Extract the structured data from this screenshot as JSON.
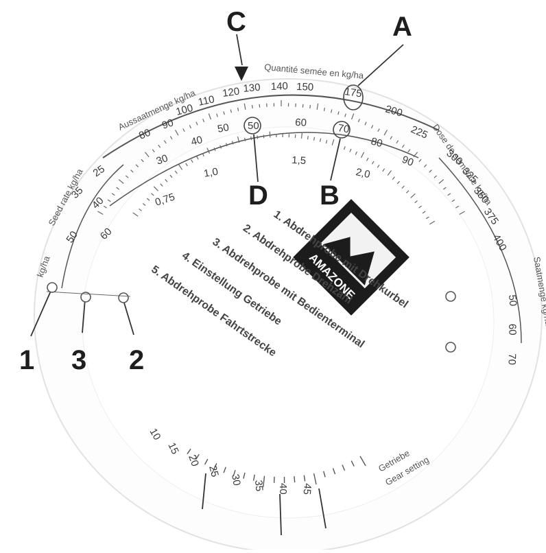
{
  "callouts": {
    "letters": [
      "A",
      "B",
      "C",
      "D"
    ],
    "numbers": [
      "1",
      "3",
      "2"
    ]
  },
  "outer_scale": {
    "title": "Quantité semée en kg/ha",
    "title_left": "Aussaatmenge kg/ha",
    "values": [
      "80",
      "90",
      "100",
      "110",
      "120",
      "130",
      "140",
      "150",
      "175",
      "200",
      "225"
    ],
    "circled_value": "175"
  },
  "inner_scale": {
    "values": [
      "30",
      "40",
      "50",
      "60",
      "70",
      "80",
      "90"
    ],
    "circled_value": "70",
    "reference_value": "50"
  },
  "ratio_scale": {
    "values": [
      "0,75",
      "1,0",
      "1,5",
      "2,0"
    ]
  },
  "left_scale": {
    "title": "Seed rate kg/ha",
    "values": [
      "25",
      "35",
      "40",
      "50",
      "60"
    ],
    "small_title": "kg/ha"
  },
  "right_scale": {
    "title": "Dose de semence kg/ha",
    "values": [
      "300",
      "325",
      "350",
      "375",
      "400"
    ],
    "second_title": "Saatmenge kg/ha",
    "outer_values": [
      "50",
      "60",
      "70"
    ]
  },
  "logo": {
    "text": "AMAZONE"
  },
  "instructions": [
    "1. Abdrehprobe mit Drehkurbel",
    "2. Abdrehprobe Drehzahl",
    "3. Abdrehprobe mit Bedienterminal",
    "4. Einstellung Getriebe",
    "5. Abdrehprobe Fahrtstrecke"
  ],
  "bottom_scale": {
    "values": [
      "10",
      "15",
      "20",
      "25",
      "30",
      "35",
      "40",
      "45"
    ],
    "labels": [
      "Getriebe",
      "Gear setting"
    ]
  }
}
